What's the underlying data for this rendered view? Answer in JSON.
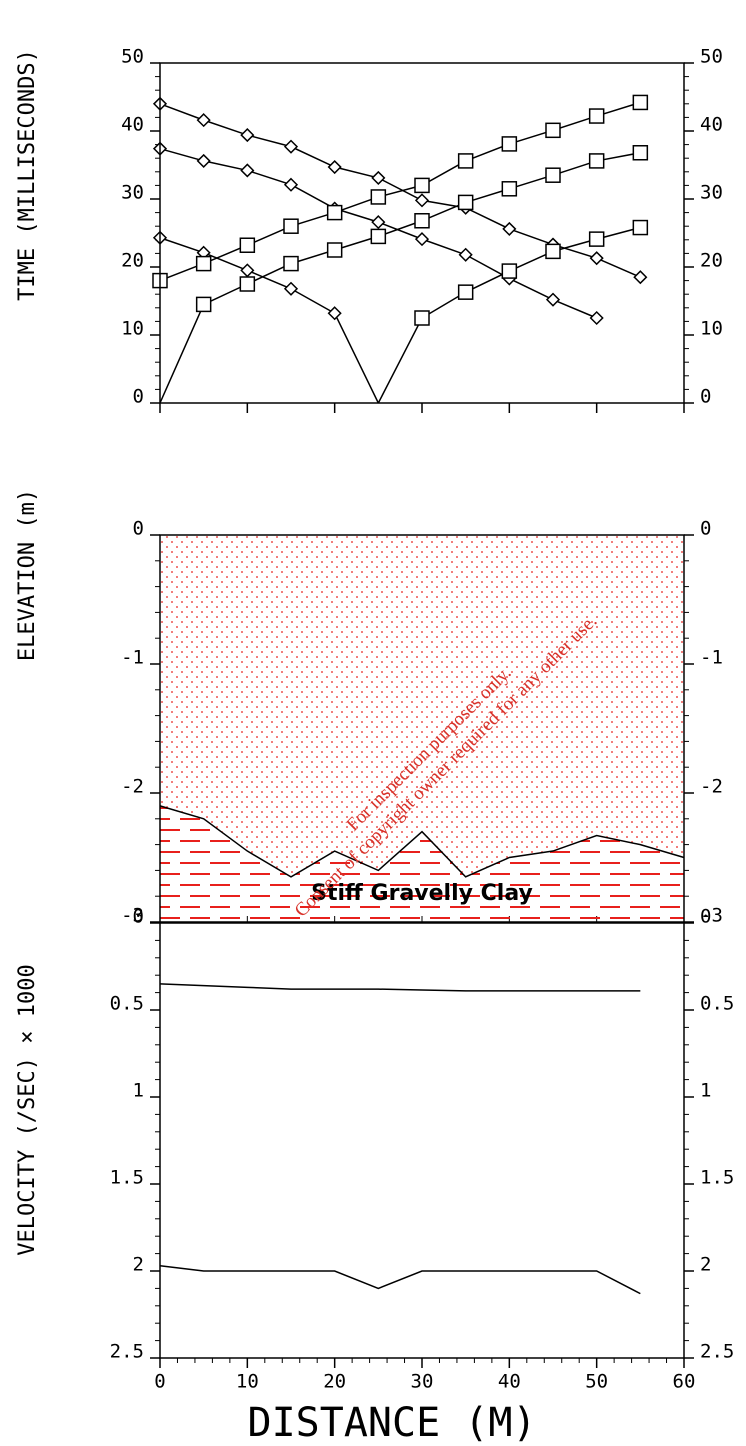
{
  "chart_data": [
    {
      "type": "line",
      "ylabel": "TIME (MILLISECONDS)",
      "xlim": [
        0,
        60
      ],
      "xticks": [
        0,
        10,
        20,
        30,
        40,
        50,
        60
      ],
      "ylim": [
        0,
        50
      ],
      "yticks": [
        0,
        10,
        20,
        30,
        40,
        50
      ],
      "series": [
        {
          "marker": "diamond",
          "color": "#000000",
          "x": [
            0,
            5,
            10,
            15,
            20,
            25,
            30,
            35,
            40,
            45,
            50,
            55
          ],
          "values": [
            44,
            41.6,
            39.4,
            37.7,
            34.7,
            33.1,
            29.8,
            28.7,
            25.6,
            23.3,
            21.3,
            18.5
          ]
        },
        {
          "marker": "diamond",
          "color": "#000000",
          "x": [
            0,
            5,
            10,
            15,
            20,
            25,
            30,
            35,
            40,
            45,
            50
          ],
          "values": [
            37.4,
            35.6,
            34.2,
            32.1,
            28.6,
            26.6,
            24.1,
            21.8,
            18.3,
            15.2,
            12.5
          ]
        },
        {
          "marker": "diamond",
          "color": "#000000",
          "x": [
            0,
            5,
            10,
            15,
            20,
            25
          ],
          "values": [
            24.3,
            22.1,
            19.5,
            16.8,
            13.2,
            0
          ]
        },
        {
          "marker": "square",
          "color": "#000000",
          "x": [
            25,
            30,
            35,
            40,
            45,
            50,
            55
          ],
          "values": [
            0,
            12.5,
            16.3,
            19.4,
            22.3,
            24.1,
            25.8
          ]
        },
        {
          "marker": "square",
          "color": "#000000",
          "x": [
            0,
            5,
            10,
            15,
            20,
            25,
            30,
            35,
            40,
            45,
            50,
            55
          ],
          "values": [
            0,
            14.5,
            17.5,
            20.5,
            22.5,
            24.5,
            26.8,
            29.5,
            31.5,
            33.5,
            35.6,
            36.8
          ]
        },
        {
          "marker": "square",
          "color": "#000000",
          "x": [
            0,
            5,
            10,
            15,
            20,
            25,
            30,
            35,
            40,
            45,
            50,
            55
          ],
          "values": [
            18,
            20.5,
            23.2,
            26,
            28,
            30.3,
            32,
            35.6,
            38.1,
            40.1,
            42.2,
            44.2
          ]
        }
      ]
    },
    {
      "type": "area",
      "ylabel": "ELEVATION (m)",
      "xlim": [
        0,
        60
      ],
      "xticks": [
        0,
        10,
        20,
        30,
        40,
        50,
        60
      ],
      "ylim": [
        -3,
        0
      ],
      "yticks": [
        0,
        -1,
        -2,
        -3
      ],
      "color": "#e8201c",
      "layer_label": "Stiff Gravelly Clay",
      "boundary": {
        "x": [
          0,
          5,
          10,
          15,
          20,
          25,
          30,
          35,
          40,
          45,
          50,
          55,
          60
        ],
        "values": [
          -2.1,
          -2.2,
          -2.45,
          -2.65,
          -2.45,
          -2.6,
          -2.3,
          -2.65,
          -2.5,
          -2.45,
          -2.33,
          -2.4,
          -2.5
        ]
      }
    },
    {
      "type": "line",
      "ylabel": "VELOCITY (/SEC) × 1000",
      "xlabel": "DISTANCE (M)",
      "inverted": true,
      "xlim": [
        0,
        60
      ],
      "xticks": [
        0,
        10,
        20,
        30,
        40,
        50,
        60
      ],
      "ylim": [
        0,
        2.5
      ],
      "yticks": [
        0,
        0.5,
        1,
        1.5,
        2,
        2.5
      ],
      "series": [
        {
          "color": "#000000",
          "x": [
            0,
            5,
            10,
            15,
            20,
            25,
            30,
            35,
            40,
            45,
            50,
            55
          ],
          "values": [
            0.35,
            0.36,
            0.37,
            0.38,
            0.38,
            0.38,
            0.385,
            0.39,
            0.39,
            0.39,
            0.39,
            0.39
          ]
        },
        {
          "color": "#000000",
          "x": [
            0,
            5,
            10,
            15,
            20,
            25,
            30,
            35,
            40,
            45,
            50,
            55
          ],
          "values": [
            1.97,
            2,
            2,
            2,
            2,
            2.1,
            2,
            2,
            2,
            2,
            2,
            2.13
          ]
        }
      ]
    }
  ],
  "watermark": {
    "line1": "For inspection purposes only.",
    "line2": "Consent of copyright owner required for any other use."
  }
}
